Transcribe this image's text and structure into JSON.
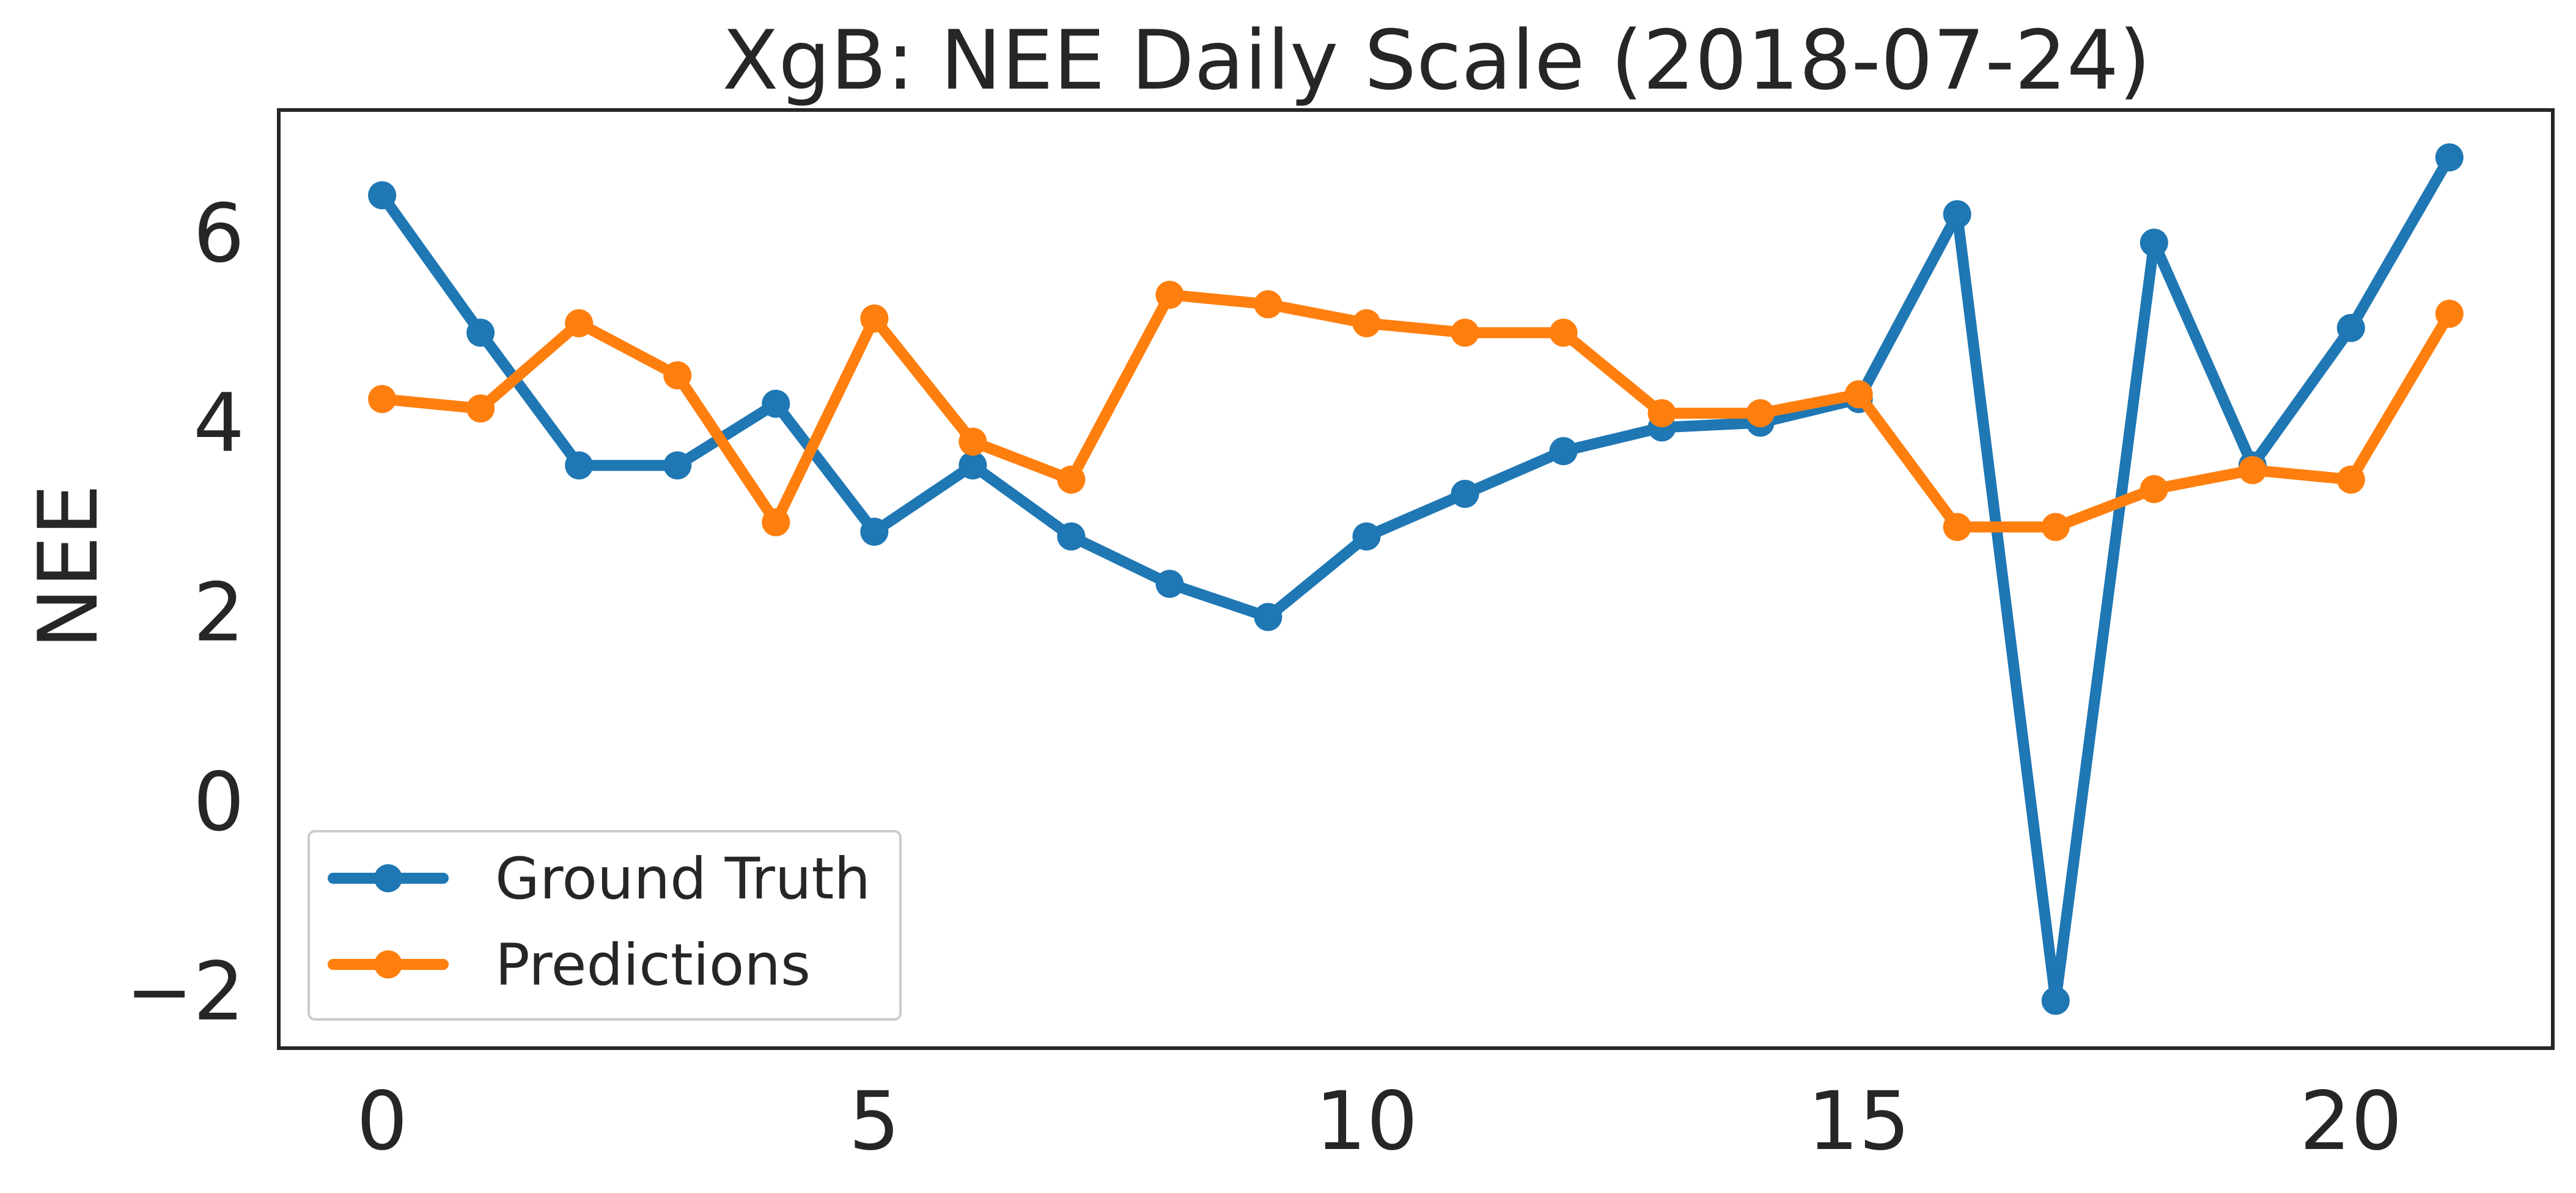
{
  "chart_data": {
    "type": "line",
    "title": "XgB: NEE Daily Scale (2018-07-24)",
    "xlabel": "",
    "ylabel": "NEE",
    "xlim": [
      -1.05,
      22.05
    ],
    "ylim": [
      -2.6,
      7.3
    ],
    "xticks": [
      0,
      5,
      10,
      15,
      20
    ],
    "yticks": [
      -2,
      0,
      2,
      4,
      6
    ],
    "xtick_labels": [
      "0",
      "5",
      "10",
      "15",
      "20"
    ],
    "ytick_labels": [
      "−2",
      "0",
      "2",
      "4",
      "6"
    ],
    "grid": false,
    "legend": {
      "position": "lower-left"
    },
    "x": [
      0,
      1,
      2,
      3,
      4,
      5,
      6,
      7,
      8,
      9,
      10,
      11,
      12,
      13,
      14,
      15,
      16,
      17,
      18,
      19,
      20,
      21
    ],
    "series": [
      {
        "name": "Ground Truth",
        "color": "#1f77b4",
        "values": [
          6.4,
          4.95,
          3.55,
          3.55,
          4.2,
          2.85,
          3.55,
          2.8,
          2.3,
          1.95,
          2.8,
          3.25,
          3.7,
          3.95,
          4.0,
          4.25,
          6.2,
          -2.1,
          5.9,
          3.55,
          5.0,
          6.8
        ]
      },
      {
        "name": "Predictions",
        "color": "#ff7f0e",
        "values": [
          4.25,
          4.15,
          5.05,
          4.5,
          2.95,
          5.1,
          3.8,
          3.4,
          5.35,
          5.25,
          5.05,
          4.95,
          4.95,
          4.1,
          4.1,
          4.3,
          2.9,
          2.9,
          3.3,
          3.5,
          3.4,
          5.15
        ]
      }
    ]
  }
}
